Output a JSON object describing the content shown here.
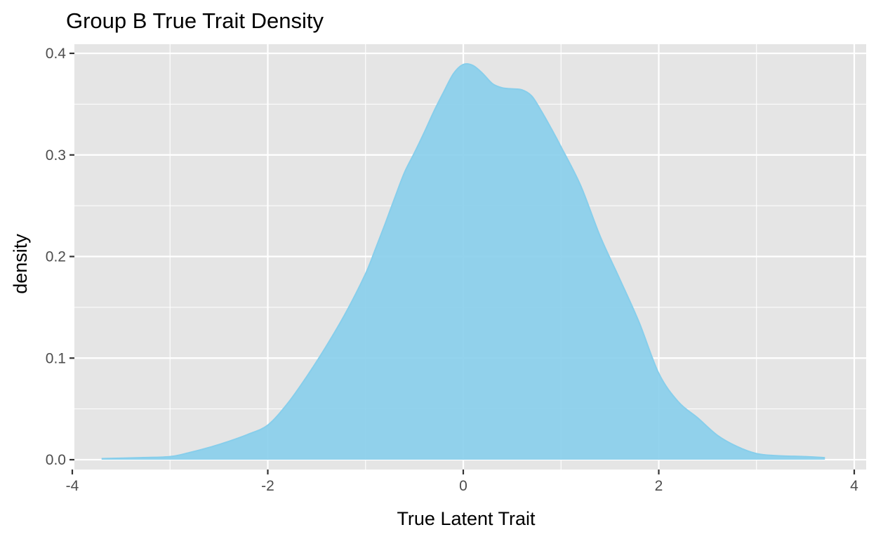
{
  "chart_data": {
    "type": "area",
    "title": "Group B True Trait Density",
    "xlabel": "True Latent Trait",
    "ylabel": "density",
    "xlim": [
      -4,
      4
    ],
    "ylim": [
      0,
      0.4
    ],
    "x_ticks": [
      "-4",
      "-2",
      "0",
      "2",
      "4"
    ],
    "y_ticks": [
      "0.0",
      "0.1",
      "0.2",
      "0.3",
      "0.4"
    ],
    "grid": true,
    "legend": "none",
    "colors": {
      "panel": "#e5e5e5",
      "grid": "#ffffff",
      "fill": "#87ceeb",
      "fill_opacity": 0.9
    },
    "x": [
      -3.7,
      -3.3,
      -3.0,
      -2.8,
      -2.6,
      -2.4,
      -2.2,
      -2.0,
      -1.8,
      -1.6,
      -1.4,
      -1.2,
      -1.0,
      -0.9,
      -0.8,
      -0.7,
      -0.6,
      -0.5,
      -0.4,
      -0.3,
      -0.2,
      -0.1,
      0.0,
      0.1,
      0.2,
      0.3,
      0.4,
      0.5,
      0.6,
      0.7,
      0.8,
      0.9,
      1.0,
      1.2,
      1.4,
      1.6,
      1.8,
      2.0,
      2.2,
      2.4,
      2.6,
      2.8,
      3.0,
      3.2,
      3.5,
      3.7
    ],
    "y": [
      0.001,
      0.002,
      0.003,
      0.007,
      0.012,
      0.018,
      0.025,
      0.034,
      0.055,
      0.082,
      0.112,
      0.145,
      0.183,
      0.207,
      0.232,
      0.258,
      0.283,
      0.302,
      0.322,
      0.343,
      0.362,
      0.38,
      0.389,
      0.388,
      0.38,
      0.37,
      0.366,
      0.365,
      0.364,
      0.358,
      0.343,
      0.326,
      0.308,
      0.27,
      0.22,
      0.178,
      0.135,
      0.085,
      0.057,
      0.041,
      0.024,
      0.013,
      0.006,
      0.004,
      0.003,
      0.002
    ]
  }
}
